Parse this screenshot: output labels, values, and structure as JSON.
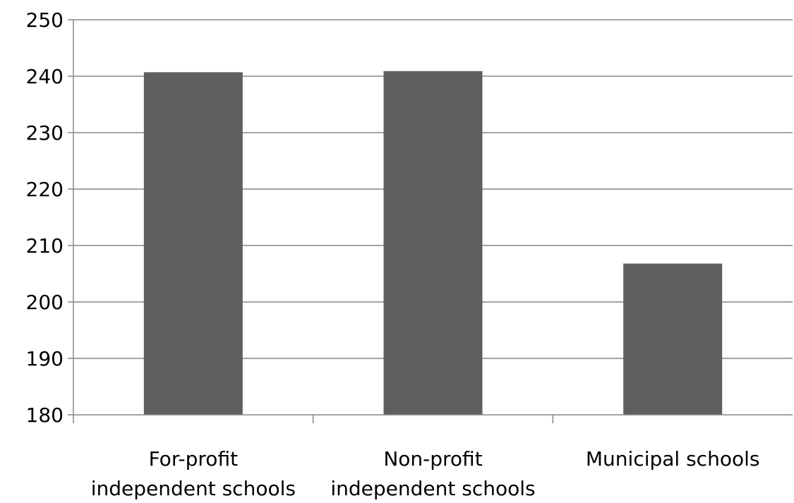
{
  "chart_data": {
    "type": "bar",
    "title": "",
    "xlabel": "",
    "ylabel": "",
    "categories": [
      [
        "For-profit",
        "independent schools"
      ],
      [
        "Non-profit",
        "independent schools"
      ],
      [
        "Municipal schools"
      ]
    ],
    "values": [
      240.7,
      240.9,
      206.8
    ],
    "ylim": [
      180,
      250
    ],
    "yticks": [
      180,
      190,
      200,
      210,
      220,
      230,
      240,
      250
    ],
    "grid": true,
    "legend": "none",
    "colors": {
      "bar": "#5f5f5f",
      "grid": "#868686",
      "axis": "#868686",
      "text": "#000000"
    }
  }
}
